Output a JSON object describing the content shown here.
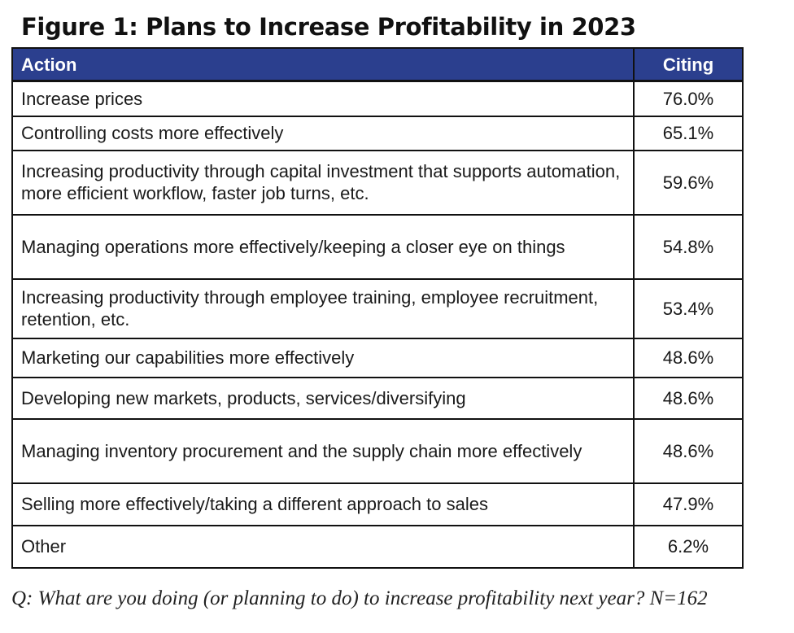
{
  "title": "Figure 1: Plans to Increase Profitability in 2023",
  "footnote": "Q: What are you doing (or planning to do) to increase profitability next year? N=162",
  "colors": {
    "header_background": "#2b3f8e",
    "header_text": "#ffffff",
    "border": "#111111"
  },
  "chart_data": {
    "type": "table",
    "title": "Figure 1: Plans to Increase Profitability in 2023",
    "columns": [
      "Action",
      "Citing"
    ],
    "rows": [
      {
        "action": "Increase prices",
        "citing": "76.0%"
      },
      {
        "action": "Controlling costs more effectively",
        "citing": "65.1%"
      },
      {
        "action": "Increasing productivity through capital investment that supports automation, more efficient workflow, faster job turns, etc.",
        "citing": "59.6%"
      },
      {
        "action": "Managing operations more effectively/keeping a closer eye on things",
        "citing": "54.8%"
      },
      {
        "action": "Increasing productivity through employee training, employee recruitment, retention, etc.",
        "citing": "53.4%"
      },
      {
        "action": "Marketing our capabilities more effectively",
        "citing": "48.6%"
      },
      {
        "action": "Developing new markets, products, services/diversifying",
        "citing": "48.6%"
      },
      {
        "action": "Managing inventory procurement and the supply chain more effectively",
        "citing": "48.6%"
      },
      {
        "action": "Selling more effectively/taking a different approach to sales",
        "citing": "47.9%"
      },
      {
        "action": "Other",
        "citing": "6.2%"
      }
    ],
    "footnote": "Q: What are you doing (or planning to do) to increase profitability next year? N=162"
  }
}
